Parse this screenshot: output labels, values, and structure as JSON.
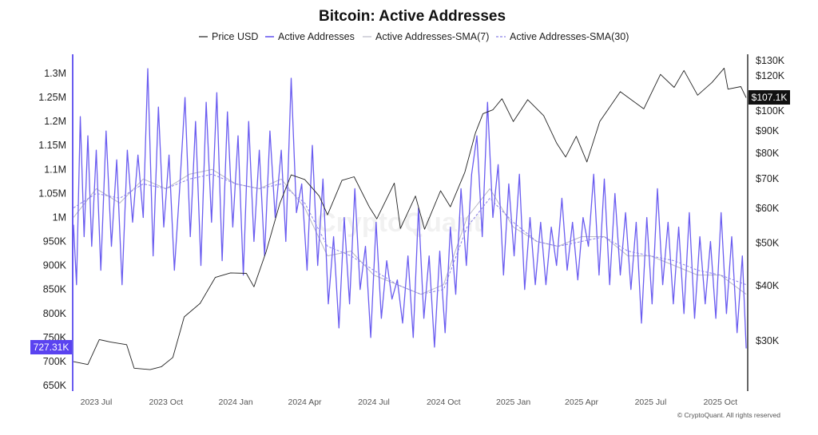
{
  "chart_data": {
    "type": "line",
    "title": "Bitcoin: Active Addresses",
    "watermark": "CryptoQuant",
    "copyright": "© CryptoQuant. All rights reserved",
    "legend": {
      "placement": "top-center",
      "items": [
        {
          "label": "Price USD",
          "style": "solid-black"
        },
        {
          "label": "Active Addresses",
          "style": "solid-purple"
        },
        {
          "label": "Active Addresses-SMA(7)",
          "style": "solid-grey"
        },
        {
          "label": "Active Addresses-SMA(30)",
          "style": "dashed-purple"
        }
      ]
    },
    "colors": {
      "price": "#222222",
      "active": "#6a5cf0",
      "sma7": "#b9b9c6",
      "sma30": "#8b82e6",
      "badge_left": "#5a43f0",
      "badge_right": "#111111"
    },
    "x_axis": {
      "ticks": [
        "2023 Jul",
        "2023 Oct",
        "2024 Jan",
        "2024 Apr",
        "2024 Jul",
        "2024 Oct",
        "2025 Jan",
        "2025 Apr",
        "2025 Jul",
        "2025 Oct"
      ],
      "range": [
        "2023-06-01",
        "2025-11-05"
      ]
    },
    "y_left": {
      "ticks": [
        "1.3M",
        "1.25M",
        "1.2M",
        "1.15M",
        "1.1M",
        "1.05M",
        "1M",
        "950K",
        "900K",
        "850K",
        "800K",
        "750K",
        "700K",
        "650K"
      ],
      "range": [
        650000,
        1300000
      ],
      "current_label": "727.31K"
    },
    "y_right": {
      "scale": "log",
      "ticks": [
        "$130K",
        "$120K",
        "$100K",
        "$90K",
        "$80K",
        "$70K",
        "$60K",
        "$50K",
        "$40K",
        "$30K"
      ],
      "tick_values": [
        130000,
        120000,
        100000,
        90000,
        80000,
        70000,
        60000,
        50000,
        40000,
        30000
      ],
      "current_label": "$107.1K"
    },
    "series": [
      {
        "name": "Price USD",
        "axis": "right",
        "points": [
          [
            "2023-06-01",
            26900
          ],
          [
            "2023-06-20",
            26500
          ],
          [
            "2023-07-05",
            30200
          ],
          [
            "2023-07-20",
            29800
          ],
          [
            "2023-08-10",
            29400
          ],
          [
            "2023-08-20",
            26000
          ],
          [
            "2023-09-10",
            25800
          ],
          [
            "2023-09-25",
            26200
          ],
          [
            "2023-10-10",
            27500
          ],
          [
            "2023-10-25",
            34000
          ],
          [
            "2023-11-15",
            36500
          ],
          [
            "2023-12-05",
            41800
          ],
          [
            "2023-12-25",
            42800
          ],
          [
            "2024-01-15",
            42700
          ],
          [
            "2024-01-25",
            39800
          ],
          [
            "2024-02-10",
            47800
          ],
          [
            "2024-02-28",
            61500
          ],
          [
            "2024-03-14",
            71500
          ],
          [
            "2024-04-01",
            69800
          ],
          [
            "2024-04-20",
            64000
          ],
          [
            "2024-05-01",
            58000
          ],
          [
            "2024-05-20",
            69500
          ],
          [
            "2024-06-05",
            70800
          ],
          [
            "2024-06-25",
            60500
          ],
          [
            "2024-07-05",
            56800
          ],
          [
            "2024-07-28",
            68500
          ],
          [
            "2024-08-05",
            54000
          ],
          [
            "2024-08-25",
            64000
          ],
          [
            "2024-09-06",
            53800
          ],
          [
            "2024-09-27",
            65800
          ],
          [
            "2024-10-10",
            60500
          ],
          [
            "2024-10-29",
            72500
          ],
          [
            "2024-11-12",
            89000
          ],
          [
            "2024-11-22",
            98500
          ],
          [
            "2024-12-05",
            100500
          ],
          [
            "2024-12-17",
            106500
          ],
          [
            "2025-01-01",
            94500
          ],
          [
            "2025-01-20",
            106000
          ],
          [
            "2025-02-10",
            97500
          ],
          [
            "2025-02-27",
            84500
          ],
          [
            "2025-03-11",
            78500
          ],
          [
            "2025-03-25",
            87500
          ],
          [
            "2025-04-08",
            76500
          ],
          [
            "2025-04-25",
            94500
          ],
          [
            "2025-05-22",
            110500
          ],
          [
            "2025-06-22",
            101000
          ],
          [
            "2025-07-14",
            121000
          ],
          [
            "2025-08-01",
            113000
          ],
          [
            "2025-08-14",
            123500
          ],
          [
            "2025-09-01",
            108500
          ],
          [
            "2025-09-20",
            116000
          ],
          [
            "2025-10-06",
            125000
          ],
          [
            "2025-10-11",
            112000
          ],
          [
            "2025-10-28",
            113500
          ],
          [
            "2025-11-04",
            107100
          ]
        ]
      },
      {
        "name": "Active Addresses",
        "axis": "left",
        "points": [
          [
            "2023-06-01",
            985000
          ],
          [
            "2023-06-05",
            860000
          ],
          [
            "2023-06-10",
            1210000
          ],
          [
            "2023-06-15",
            960000
          ],
          [
            "2023-06-20",
            1170000
          ],
          [
            "2023-06-25",
            940000
          ],
          [
            "2023-07-01",
            1140000
          ],
          [
            "2023-07-07",
            890000
          ],
          [
            "2023-07-14",
            1180000
          ],
          [
            "2023-07-21",
            940000
          ],
          [
            "2023-07-28",
            1120000
          ],
          [
            "2023-08-04",
            860000
          ],
          [
            "2023-08-11",
            1140000
          ],
          [
            "2023-08-18",
            990000
          ],
          [
            "2023-08-25",
            1130000
          ],
          [
            "2023-09-01",
            1000000
          ],
          [
            "2023-09-07",
            1310000
          ],
          [
            "2023-09-14",
            920000
          ],
          [
            "2023-09-21",
            1230000
          ],
          [
            "2023-09-28",
            980000
          ],
          [
            "2023-10-05",
            1130000
          ],
          [
            "2023-10-12",
            890000
          ],
          [
            "2023-10-19",
            1060000
          ],
          [
            "2023-10-26",
            1250000
          ],
          [
            "2023-11-02",
            960000
          ],
          [
            "2023-11-09",
            1200000
          ],
          [
            "2023-11-16",
            900000
          ],
          [
            "2023-11-23",
            1240000
          ],
          [
            "2023-11-30",
            990000
          ],
          [
            "2023-12-07",
            1260000
          ],
          [
            "2023-12-14",
            910000
          ],
          [
            "2023-12-21",
            1220000
          ],
          [
            "2023-12-28",
            980000
          ],
          [
            "2024-01-04",
            1170000
          ],
          [
            "2024-01-11",
            880000
          ],
          [
            "2024-01-18",
            1200000
          ],
          [
            "2024-01-25",
            950000
          ],
          [
            "2024-02-01",
            1140000
          ],
          [
            "2024-02-08",
            920000
          ],
          [
            "2024-02-15",
            1180000
          ],
          [
            "2024-02-22",
            1000000
          ],
          [
            "2024-03-01",
            1140000
          ],
          [
            "2024-03-07",
            950000
          ],
          [
            "2024-03-14",
            1290000
          ],
          [
            "2024-03-21",
            1010000
          ],
          [
            "2024-03-28",
            1070000
          ],
          [
            "2024-04-04",
            890000
          ],
          [
            "2024-04-11",
            1150000
          ],
          [
            "2024-04-18",
            900000
          ],
          [
            "2024-04-25",
            1080000
          ],
          [
            "2024-05-02",
            820000
          ],
          [
            "2024-05-09",
            960000
          ],
          [
            "2024-05-16",
            770000
          ],
          [
            "2024-05-23",
            1000000
          ],
          [
            "2024-05-30",
            820000
          ],
          [
            "2024-06-06",
            1060000
          ],
          [
            "2024-06-13",
            850000
          ],
          [
            "2024-06-20",
            940000
          ],
          [
            "2024-06-27",
            750000
          ],
          [
            "2024-07-04",
            990000
          ],
          [
            "2024-07-11",
            790000
          ],
          [
            "2024-07-18",
            910000
          ],
          [
            "2024-07-25",
            830000
          ],
          [
            "2024-08-01",
            870000
          ],
          [
            "2024-08-08",
            780000
          ],
          [
            "2024-08-15",
            920000
          ],
          [
            "2024-08-22",
            750000
          ],
          [
            "2024-08-29",
            1020000
          ],
          [
            "2024-09-05",
            790000
          ],
          [
            "2024-09-12",
            920000
          ],
          [
            "2024-09-19",
            730000
          ],
          [
            "2024-09-26",
            930000
          ],
          [
            "2024-10-03",
            760000
          ],
          [
            "2024-10-10",
            980000
          ],
          [
            "2024-10-17",
            840000
          ],
          [
            "2024-10-24",
            1060000
          ],
          [
            "2024-10-31",
            900000
          ],
          [
            "2024-11-07",
            1090000
          ],
          [
            "2024-11-14",
            1170000
          ],
          [
            "2024-11-21",
            960000
          ],
          [
            "2024-11-28",
            1240000
          ],
          [
            "2024-12-05",
            1000000
          ],
          [
            "2024-12-12",
            1110000
          ],
          [
            "2024-12-19",
            880000
          ],
          [
            "2024-12-26",
            1070000
          ],
          [
            "2025-01-02",
            920000
          ],
          [
            "2025-01-09",
            1090000
          ],
          [
            "2025-01-16",
            850000
          ],
          [
            "2025-01-23",
            1000000
          ],
          [
            "2025-01-30",
            860000
          ],
          [
            "2025-02-06",
            990000
          ],
          [
            "2025-02-13",
            860000
          ],
          [
            "2025-02-20",
            980000
          ],
          [
            "2025-02-27",
            900000
          ],
          [
            "2025-03-06",
            1040000
          ],
          [
            "2025-03-13",
            890000
          ],
          [
            "2025-03-20",
            990000
          ],
          [
            "2025-03-27",
            870000
          ],
          [
            "2025-04-03",
            1000000
          ],
          [
            "2025-04-10",
            940000
          ],
          [
            "2025-04-17",
            1090000
          ],
          [
            "2025-04-24",
            880000
          ],
          [
            "2025-05-01",
            1080000
          ],
          [
            "2025-05-08",
            860000
          ],
          [
            "2025-05-15",
            1050000
          ],
          [
            "2025-05-22",
            880000
          ],
          [
            "2025-05-29",
            1010000
          ],
          [
            "2025-06-05",
            850000
          ],
          [
            "2025-06-12",
            990000
          ],
          [
            "2025-06-19",
            780000
          ],
          [
            "2025-06-26",
            1000000
          ],
          [
            "2025-07-03",
            820000
          ],
          [
            "2025-07-10",
            1060000
          ],
          [
            "2025-07-17",
            860000
          ],
          [
            "2025-07-24",
            990000
          ],
          [
            "2025-07-31",
            820000
          ],
          [
            "2025-08-07",
            980000
          ],
          [
            "2025-08-14",
            800000
          ],
          [
            "2025-08-21",
            1010000
          ],
          [
            "2025-08-28",
            790000
          ],
          [
            "2025-09-04",
            960000
          ],
          [
            "2025-09-11",
            820000
          ],
          [
            "2025-09-18",
            950000
          ],
          [
            "2025-09-25",
            790000
          ],
          [
            "2025-10-02",
            1010000
          ],
          [
            "2025-10-09",
            800000
          ],
          [
            "2025-10-16",
            960000
          ],
          [
            "2025-10-23",
            760000
          ],
          [
            "2025-10-30",
            920000
          ],
          [
            "2025-11-04",
            727310
          ]
        ]
      },
      {
        "name": "Active Addresses-SMA(7)",
        "axis": "left",
        "points": [
          [
            "2023-06-01",
            1000000
          ],
          [
            "2023-07-01",
            1060000
          ],
          [
            "2023-08-01",
            1030000
          ],
          [
            "2023-09-01",
            1080000
          ],
          [
            "2023-10-01",
            1060000
          ],
          [
            "2023-11-01",
            1090000
          ],
          [
            "2023-12-01",
            1100000
          ],
          [
            "2024-01-01",
            1070000
          ],
          [
            "2024-02-01",
            1060000
          ],
          [
            "2024-03-01",
            1080000
          ],
          [
            "2024-04-01",
            1020000
          ],
          [
            "2024-05-01",
            920000
          ],
          [
            "2024-06-01",
            930000
          ],
          [
            "2024-07-01",
            880000
          ],
          [
            "2024-08-01",
            860000
          ],
          [
            "2024-09-01",
            840000
          ],
          [
            "2024-10-01",
            860000
          ],
          [
            "2024-11-01",
            1000000
          ],
          [
            "2024-12-01",
            1060000
          ],
          [
            "2025-01-01",
            980000
          ],
          [
            "2025-02-01",
            950000
          ],
          [
            "2025-03-01",
            940000
          ],
          [
            "2025-04-01",
            960000
          ],
          [
            "2025-05-01",
            960000
          ],
          [
            "2025-06-01",
            920000
          ],
          [
            "2025-07-01",
            920000
          ],
          [
            "2025-08-01",
            900000
          ],
          [
            "2025-09-01",
            880000
          ],
          [
            "2025-10-01",
            880000
          ],
          [
            "2025-11-04",
            840000
          ]
        ]
      },
      {
        "name": "Active Addresses-SMA(30)",
        "axis": "left",
        "points": [
          [
            "2023-06-01",
            1020000
          ],
          [
            "2023-07-01",
            1050000
          ],
          [
            "2023-08-01",
            1040000
          ],
          [
            "2023-09-01",
            1070000
          ],
          [
            "2023-10-01",
            1060000
          ],
          [
            "2023-11-01",
            1080000
          ],
          [
            "2023-12-01",
            1090000
          ],
          [
            "2024-01-01",
            1070000
          ],
          [
            "2024-02-01",
            1060000
          ],
          [
            "2024-03-01",
            1070000
          ],
          [
            "2024-04-01",
            1030000
          ],
          [
            "2024-05-01",
            940000
          ],
          [
            "2024-06-01",
            920000
          ],
          [
            "2024-07-01",
            890000
          ],
          [
            "2024-08-01",
            860000
          ],
          [
            "2024-09-01",
            840000
          ],
          [
            "2024-10-01",
            850000
          ],
          [
            "2024-11-01",
            980000
          ],
          [
            "2024-12-01",
            1040000
          ],
          [
            "2025-01-01",
            990000
          ],
          [
            "2025-02-01",
            950000
          ],
          [
            "2025-03-01",
            940000
          ],
          [
            "2025-04-01",
            950000
          ],
          [
            "2025-05-01",
            960000
          ],
          [
            "2025-06-01",
            930000
          ],
          [
            "2025-07-01",
            920000
          ],
          [
            "2025-08-01",
            910000
          ],
          [
            "2025-09-01",
            890000
          ],
          [
            "2025-10-01",
            880000
          ],
          [
            "2025-11-04",
            860000
          ]
        ]
      }
    ]
  }
}
